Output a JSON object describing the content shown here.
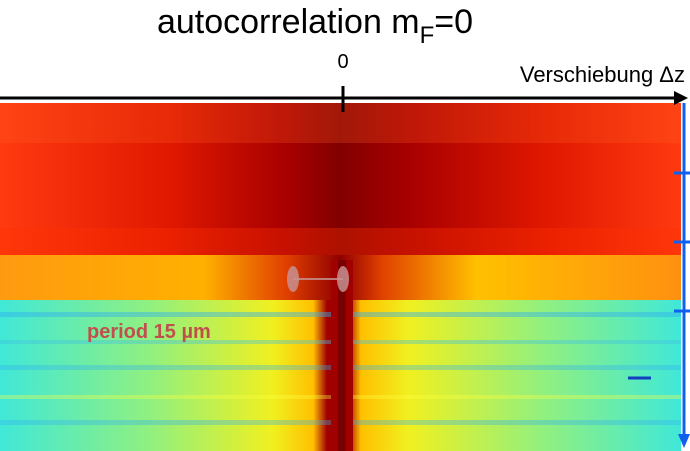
{
  "title": {
    "text": "autocorrelation m",
    "subscript": "F",
    "suffix": "=0"
  },
  "axis": {
    "zero_label": "0",
    "label": "Verschiebung Δz"
  },
  "annotation": "period 15 µm"
}
